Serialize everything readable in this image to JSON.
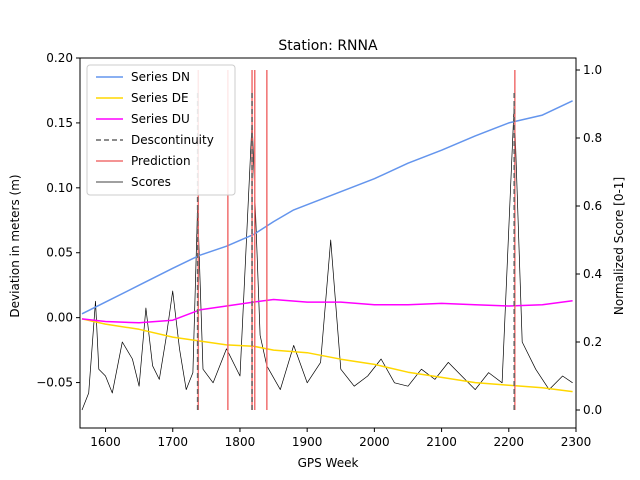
{
  "chart_data": {
    "type": "line",
    "title": "Station: RNNA",
    "xlabel": "GPS Week",
    "ylabel": "Deviation in meters (m)",
    "y2label": "Normalized Score [0-1]",
    "xlim": [
      1562,
      2300
    ],
    "ylim": [
      -0.085,
      0.2
    ],
    "y2lim": [
      0.0,
      1.0
    ],
    "x_ticks": [
      1600,
      1700,
      1800,
      1900,
      2000,
      2100,
      2200,
      2300
    ],
    "y_ticks": [
      -0.05,
      0.0,
      0.05,
      0.1,
      0.15,
      0.2
    ],
    "y_tick_labels": [
      "−0.05",
      "0.00",
      "0.05",
      "0.10",
      "0.15",
      "0.20"
    ],
    "y2_ticks": [
      0.0,
      0.2,
      0.4,
      0.6,
      0.8,
      1.0
    ],
    "y2_tick_labels": [
      "0.0",
      "0.2",
      "0.4",
      "0.6",
      "0.8",
      "1.0"
    ],
    "legend_position": "top-left",
    "grid": false,
    "series": [
      {
        "name": "Series DN",
        "color": "#6495ED",
        "axis": "left",
        "x": [
          1565,
          1600,
          1650,
          1700,
          1740,
          1780,
          1820,
          1850,
          1880,
          1900,
          1950,
          2000,
          2050,
          2100,
          2150,
          2200,
          2250,
          2295
        ],
        "values": [
          0.003,
          0.012,
          0.025,
          0.038,
          0.048,
          0.055,
          0.064,
          0.074,
          0.083,
          0.087,
          0.097,
          0.107,
          0.119,
          0.129,
          0.14,
          0.15,
          0.156,
          0.167
        ]
      },
      {
        "name": "Series DE",
        "color": "#FFD700",
        "axis": "left",
        "x": [
          1565,
          1600,
          1650,
          1700,
          1740,
          1780,
          1820,
          1850,
          1900,
          1950,
          2000,
          2050,
          2100,
          2150,
          2200,
          2250,
          2295
        ],
        "values": [
          -0.001,
          -0.005,
          -0.009,
          -0.015,
          -0.018,
          -0.021,
          -0.022,
          -0.025,
          -0.027,
          -0.032,
          -0.036,
          -0.042,
          -0.046,
          -0.05,
          -0.052,
          -0.054,
          -0.057
        ]
      },
      {
        "name": "Series DU",
        "color": "#FF00FF",
        "axis": "left",
        "x": [
          1565,
          1600,
          1650,
          1700,
          1740,
          1780,
          1820,
          1850,
          1900,
          1950,
          2000,
          2050,
          2100,
          2150,
          2200,
          2250,
          2295
        ],
        "values": [
          -0.001,
          -0.003,
          -0.004,
          -0.002,
          0.006,
          0.009,
          0.012,
          0.014,
          0.012,
          0.012,
          0.01,
          0.01,
          0.011,
          0.01,
          0.009,
          0.01,
          0.013
        ]
      },
      {
        "name": "Descontinuity",
        "color": "#666666",
        "axis": "right",
        "style": "dashed",
        "x": [
          1737,
          1818,
          2208
        ],
        "values": [
          1.0,
          1.0,
          1.0
        ]
      },
      {
        "name": "Prediction",
        "color": "#F07070",
        "axis": "right",
        "x": [
          1738,
          1782,
          1818,
          1822,
          1840,
          2209
        ],
        "values": [
          1.0,
          1.0,
          1.0,
          1.0,
          1.0,
          1.0
        ]
      },
      {
        "name": "Scores",
        "color": "#000000",
        "axis": "right",
        "x": [
          1565,
          1575,
          1585,
          1590,
          1600,
          1610,
          1625,
          1640,
          1650,
          1660,
          1670,
          1680,
          1690,
          1700,
          1710,
          1720,
          1730,
          1737,
          1745,
          1760,
          1780,
          1800,
          1818,
          1830,
          1840,
          1860,
          1880,
          1900,
          1920,
          1935,
          1950,
          1970,
          1990,
          2010,
          2030,
          2050,
          2070,
          2090,
          2110,
          2130,
          2150,
          2170,
          2190,
          2208,
          2220,
          2240,
          2260,
          2280,
          2295
        ],
        "values": [
          0.0,
          0.05,
          0.32,
          0.12,
          0.1,
          0.05,
          0.2,
          0.15,
          0.07,
          0.3,
          0.13,
          0.09,
          0.21,
          0.35,
          0.18,
          0.06,
          0.11,
          0.6,
          0.12,
          0.08,
          0.18,
          0.1,
          0.85,
          0.22,
          0.13,
          0.06,
          0.19,
          0.08,
          0.14,
          0.5,
          0.12,
          0.07,
          0.1,
          0.15,
          0.08,
          0.07,
          0.12,
          0.09,
          0.14,
          0.1,
          0.06,
          0.11,
          0.08,
          0.9,
          0.2,
          0.12,
          0.06,
          0.1,
          0.08
        ]
      }
    ]
  }
}
